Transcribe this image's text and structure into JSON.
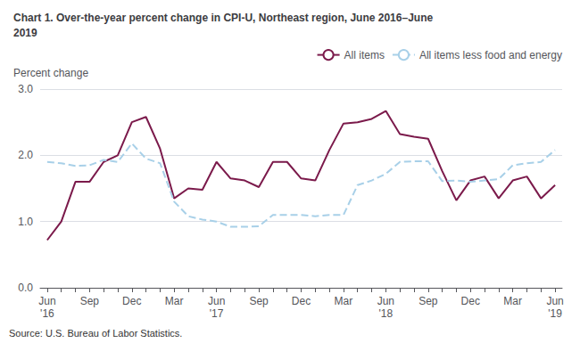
{
  "chart_data": {
    "type": "line",
    "title": "Chart 1. Over-the-year percent change in CPI-U, Northeast region, June 2016–June\n2019",
    "ylabel": "Percent change",
    "annotations": [
      "Source: U.S. Bureau of Labor Statistics."
    ],
    "categories": [
      "Jun\n'16",
      null,
      null,
      "Sep",
      null,
      null,
      "Dec",
      null,
      null,
      "Mar",
      null,
      null,
      "Jun\n'17",
      null,
      null,
      "Sep",
      null,
      null,
      "Dec",
      null,
      null,
      "Mar",
      null,
      null,
      "Jun\n'18",
      null,
      null,
      "Sep",
      null,
      null,
      "Dec",
      null,
      null,
      "Mar",
      null,
      null,
      "Jun\n'19"
    ],
    "series": [
      {
        "name": "All items",
        "color": "#7b1a4b",
        "line_style": "solid",
        "values": [
          0.72,
          1.0,
          1.6,
          1.6,
          1.9,
          2.0,
          2.5,
          2.58,
          2.1,
          1.35,
          1.5,
          1.48,
          1.9,
          1.65,
          1.62,
          1.52,
          1.9,
          1.9,
          1.65,
          1.62,
          2.08,
          2.48,
          2.5,
          2.55,
          2.67,
          2.32,
          2.28,
          2.25,
          1.76,
          1.32,
          1.62,
          1.68,
          1.35,
          1.62,
          1.68,
          1.35,
          1.55
        ]
      },
      {
        "name": "All items less food and energy",
        "color": "#a8d0e8",
        "line_style": "dashed",
        "values": [
          1.9,
          1.88,
          1.84,
          1.85,
          1.93,
          1.9,
          2.18,
          1.95,
          1.88,
          1.3,
          1.08,
          1.03,
          1.0,
          0.92,
          0.92,
          0.93,
          1.1,
          1.1,
          1.1,
          1.08,
          1.1,
          1.1,
          1.55,
          1.62,
          1.72,
          1.9,
          1.91,
          1.91,
          1.61,
          1.62,
          1.6,
          1.62,
          1.64,
          1.85,
          1.88,
          1.9,
          2.08
        ]
      }
    ],
    "ylim": [
      0.0,
      3.0
    ],
    "yticks": [
      {
        "value": 0,
        "label": "0.0"
      },
      {
        "value": 1,
        "label": "1.0"
      },
      {
        "value": 2,
        "label": "2.0"
      },
      {
        "value": 3,
        "label": "3.0"
      }
    ],
    "grid": true,
    "legend": "upper right"
  }
}
